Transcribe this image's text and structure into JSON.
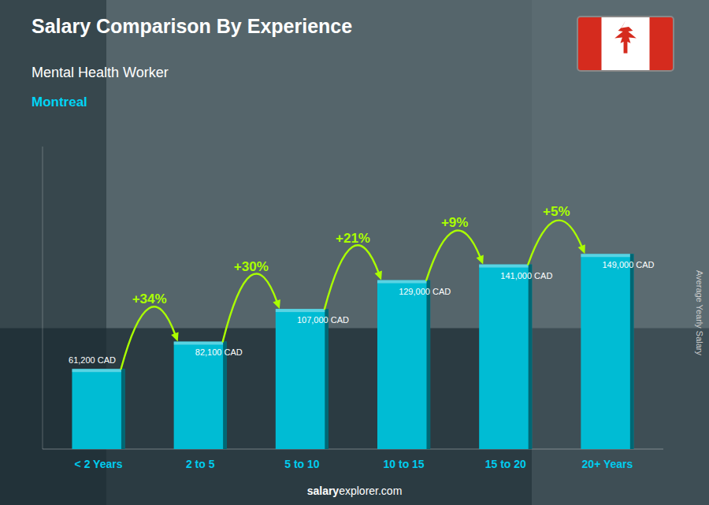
{
  "chart_data": {
    "type": "bar",
    "title": "Salary Comparison By Experience",
    "subtitle": [
      "Mental Health Worker",
      "Montreal"
    ],
    "y_label": "Average Yearly Salary",
    "categories": [
      "< 2 Years",
      "2 to 5",
      "5 to 10",
      "10 to 15",
      "15 to 20",
      "20+ Years"
    ],
    "values": [
      61200,
      82100,
      107000,
      129000,
      141000,
      149000
    ],
    "value_labels": [
      "61,200 CAD",
      "82,100 CAD",
      "107,000 CAD",
      "129,000 CAD",
      "141,000 CAD",
      "149,000 CAD"
    ],
    "data_labels": true,
    "color": "#00bcd4",
    "ylim": [
      0,
      230950
    ],
    "tick_labels": "x",
    "annotations": [
      "+34%",
      "+30%",
      "+21%",
      "+9%",
      "+5%"
    ],
    "source": [
      "salary",
      "explorer.com"
    ]
  }
}
